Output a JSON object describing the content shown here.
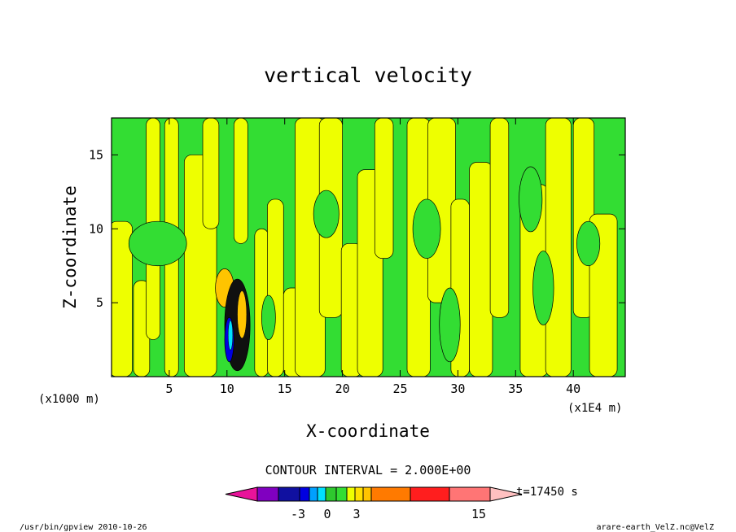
{
  "chart_data": {
    "type": "contour",
    "title": "vertical velocity",
    "xlabel": "X-coordinate",
    "ylabel": "Z-coordinate",
    "x_unit_note": "(x1E4 m)",
    "y_unit_note": "(x1000 m)",
    "x_ticks": [
      5,
      10,
      15,
      20,
      25,
      30,
      35,
      40
    ],
    "y_ticks": [
      5,
      10,
      15
    ],
    "xlim": [
      0,
      44.5
    ],
    "ylim": [
      0,
      17.5
    ],
    "contour_interval": "CONTOUR INTERVAL = 2.000E+00",
    "time_label": "t=17450 s",
    "colorbar": {
      "tick_labels": [
        "-3",
        "0",
        "3",
        "15"
      ],
      "colors": [
        "#e8139a",
        "#8000c0",
        "#1010a0",
        "#0000e0",
        "#00a0ff",
        "#00e0ff",
        "#2ec82e",
        "#33dd33",
        "#eeff00",
        "#ffe000",
        "#ffc400",
        "#ff7a00",
        "#ff1e1e",
        "#ff7575",
        "#ffc0c0"
      ]
    },
    "field_colors": {
      "positive_small": "#eeff00",
      "negative_small": "#33dd33",
      "orange": "#ffc400",
      "blue": "#0000e0",
      "cyan": "#00e0ff",
      "dark": "#101010"
    }
  },
  "footer": {
    "left": "/usr/bin/gpview   2010-10-26",
    "right": "arare-earth_VelZ.nc@VelZ"
  }
}
